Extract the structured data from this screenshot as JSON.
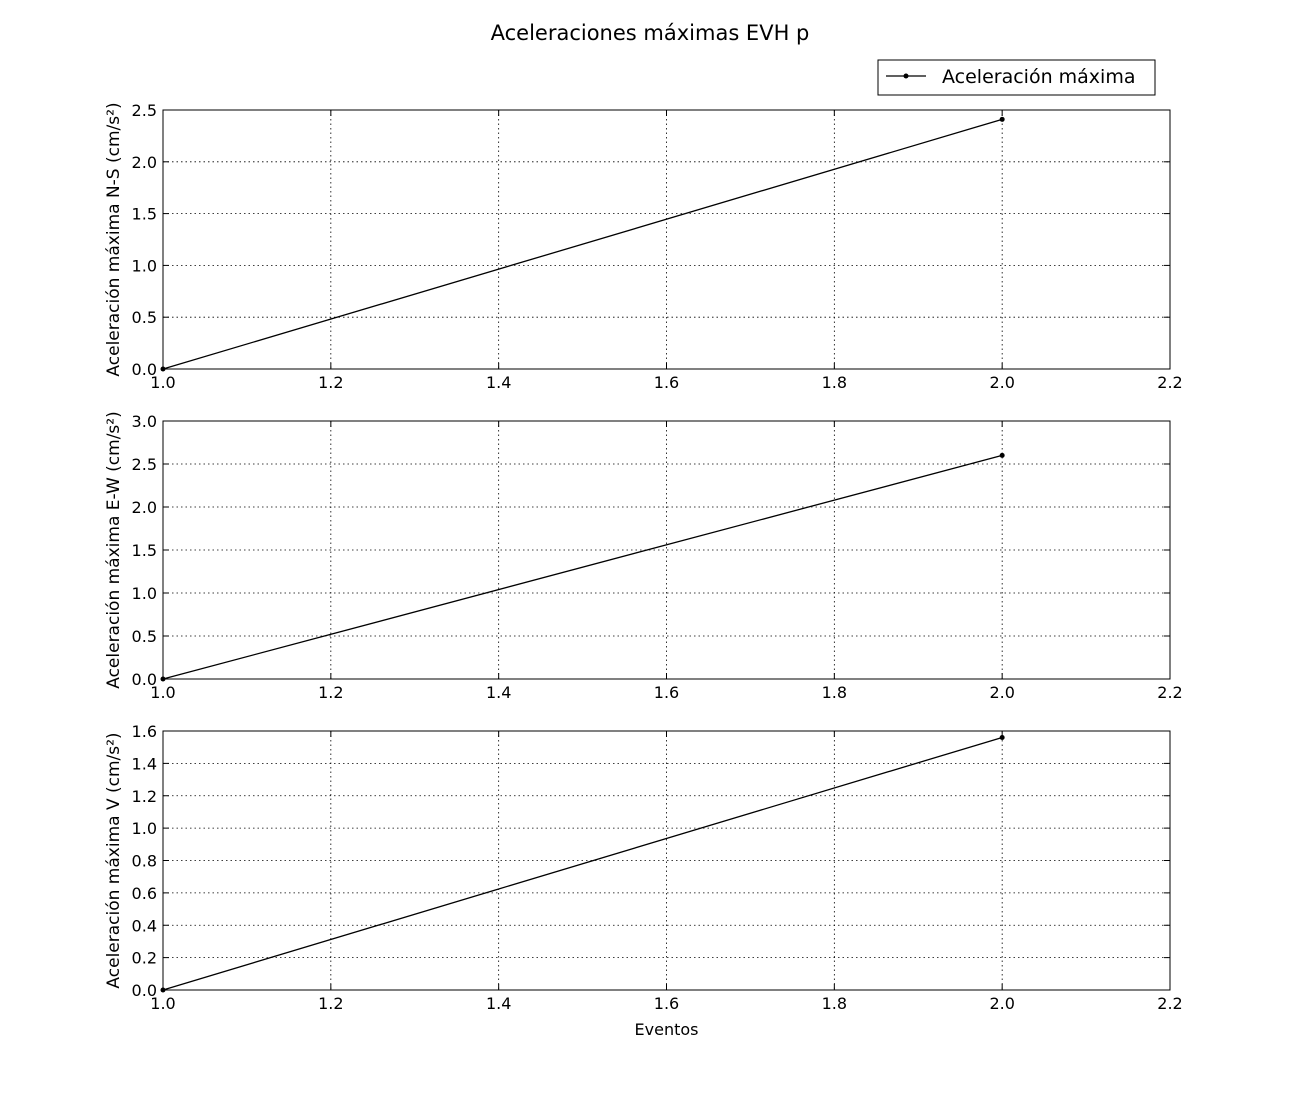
{
  "figure": {
    "title": "Aceleraciones máximas EVH p",
    "legend_label": "Aceleración máxima",
    "legend_placement": "top-right",
    "line_color": "#000000",
    "grid_color": "#000000"
  },
  "chart_data": [
    {
      "type": "line",
      "title": "",
      "xlabel": "",
      "ylabel": "Aceleración máxima N-S (cm/s²)",
      "xlim": [
        1.0,
        2.2
      ],
      "ylim": [
        0.0,
        2.5
      ],
      "xticks": [
        "1.0",
        "1.2",
        "1.4",
        "1.6",
        "1.8",
        "2.0",
        "2.2"
      ],
      "yticks": [
        "0.0",
        "0.5",
        "1.0",
        "1.5",
        "2.0",
        "2.5"
      ],
      "grid": true,
      "series": [
        {
          "name": "Aceleración máxima",
          "x": [
            1,
            2
          ],
          "y": [
            0.0,
            2.41
          ]
        }
      ]
    },
    {
      "type": "line",
      "title": "",
      "xlabel": "",
      "ylabel": "Aceleración máxima E-W (cm/s²)",
      "xlim": [
        1.0,
        2.2
      ],
      "ylim": [
        0.0,
        3.0
      ],
      "xticks": [
        "1.0",
        "1.2",
        "1.4",
        "1.6",
        "1.8",
        "2.0",
        "2.2"
      ],
      "yticks": [
        "0.0",
        "0.5",
        "1.0",
        "1.5",
        "2.0",
        "2.5",
        "3.0"
      ],
      "grid": true,
      "series": [
        {
          "name": "Aceleración máxima",
          "x": [
            1,
            2
          ],
          "y": [
            0.0,
            2.6
          ]
        }
      ]
    },
    {
      "type": "line",
      "title": "",
      "xlabel": "Eventos",
      "ylabel": "Aceleración máxima V (cm/s²)",
      "xlim": [
        1.0,
        2.2
      ],
      "ylim": [
        0.0,
        1.6
      ],
      "xticks": [
        "1.0",
        "1.2",
        "1.4",
        "1.6",
        "1.8",
        "2.0",
        "2.2"
      ],
      "yticks": [
        "0.0",
        "0.2",
        "0.4",
        "0.6",
        "0.8",
        "1.0",
        "1.2",
        "1.4",
        "1.6"
      ],
      "grid": true,
      "series": [
        {
          "name": "Aceleración máxima",
          "x": [
            1,
            2
          ],
          "y": [
            0.0,
            1.56
          ]
        }
      ]
    }
  ]
}
